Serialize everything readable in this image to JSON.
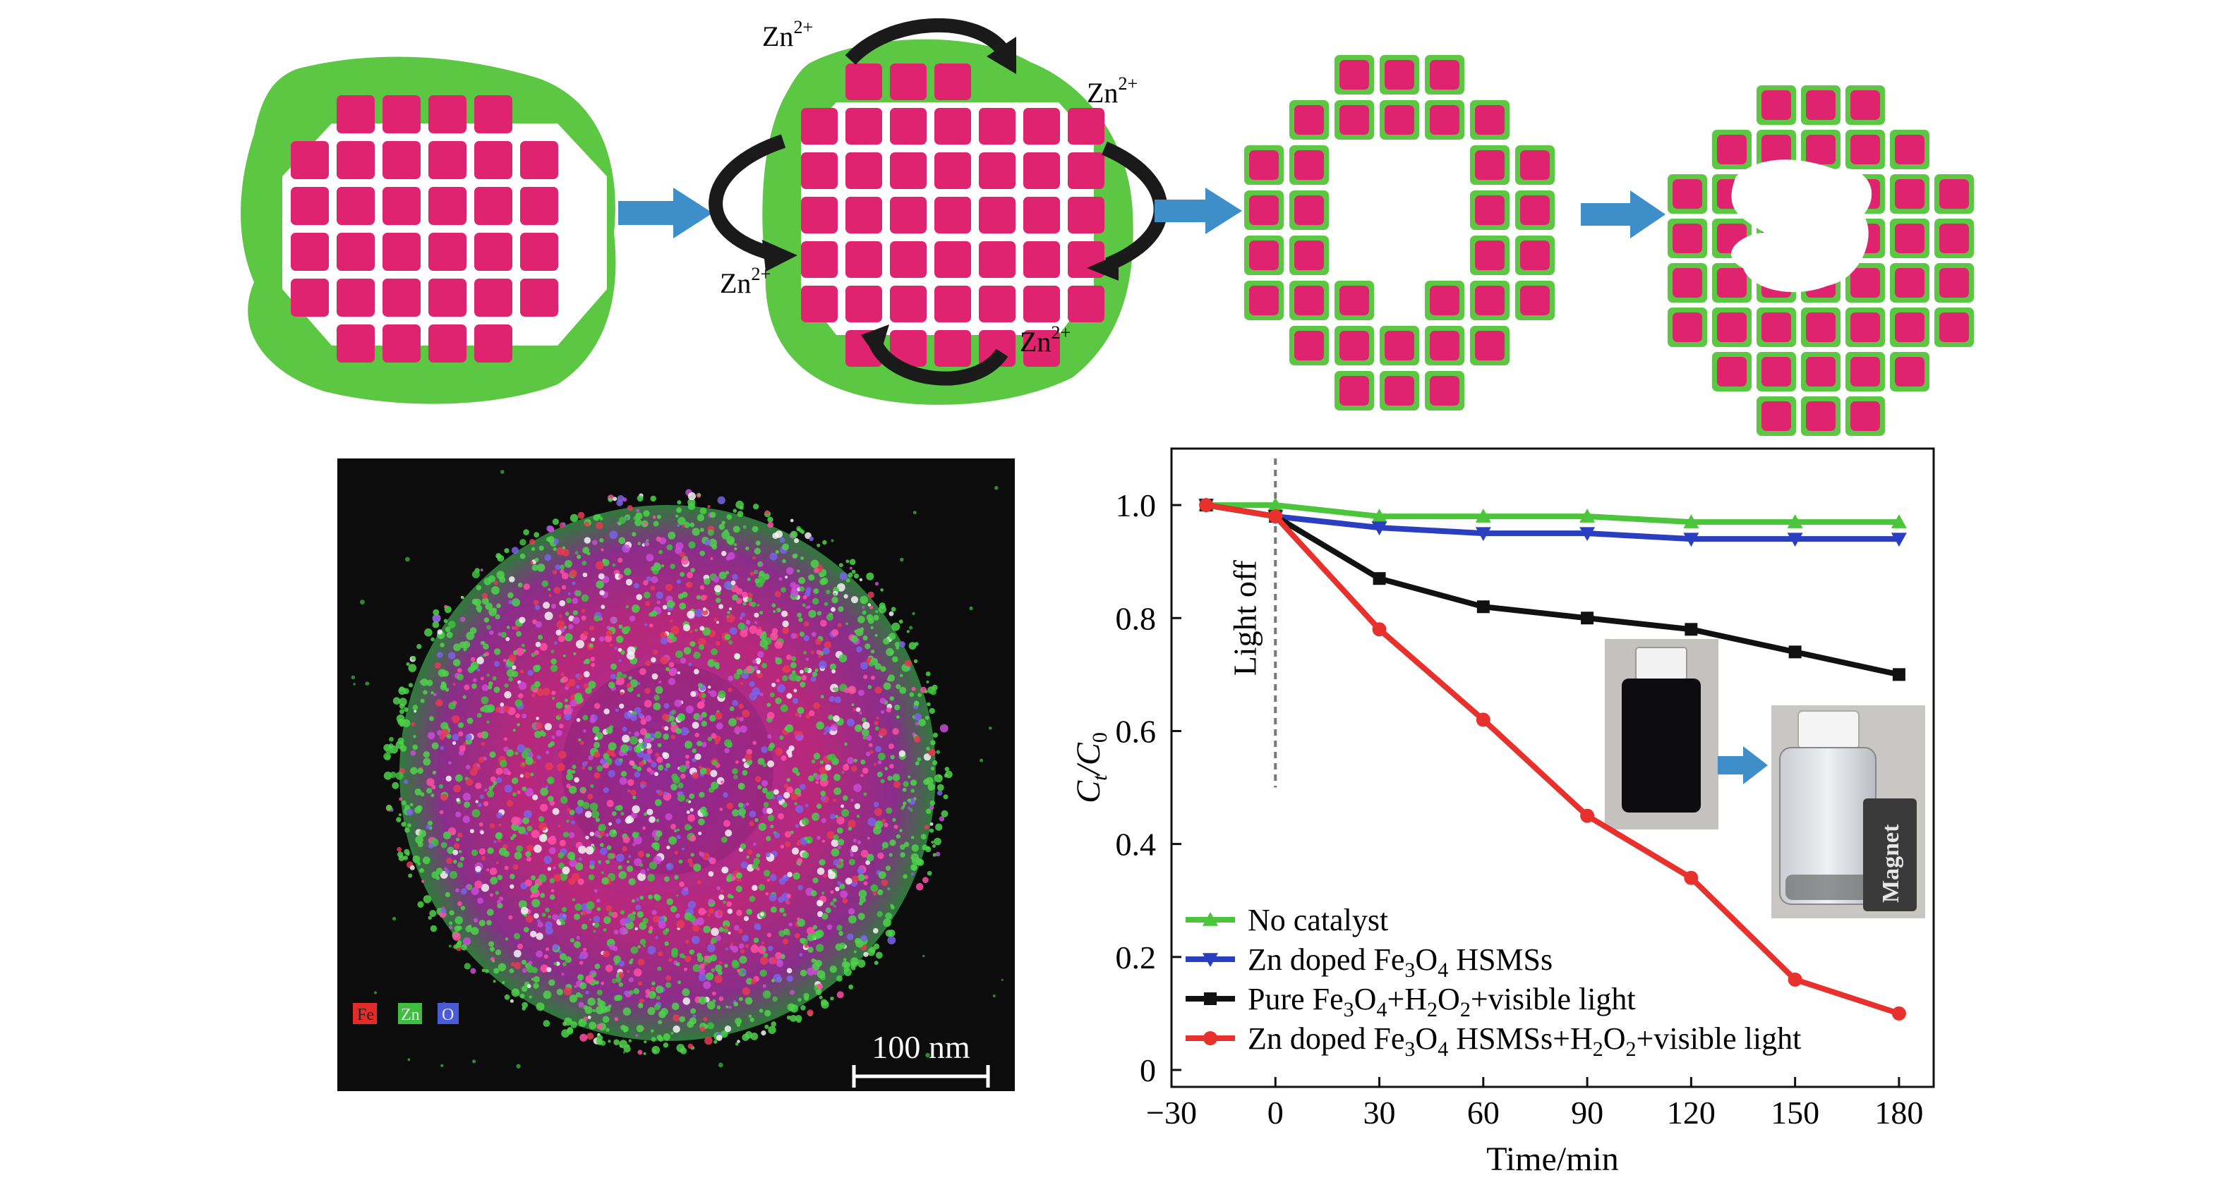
{
  "schematic": {
    "ion_label": "Zn",
    "ion_charge": "2+"
  },
  "map": {
    "legend": [
      {
        "label": "Fe",
        "color": "#e52a2a"
      },
      {
        "label": "Zn",
        "color": "#3fbf3f"
      },
      {
        "label": "O",
        "color": "#4a5bd8"
      }
    ],
    "scalebar": "100 nm"
  },
  "inset": {
    "magnet_label": "Magnet"
  },
  "colors": {
    "shell_green": "#5cc742",
    "core_pink": "#e0236e",
    "arrow_blue": "#3d8ec9",
    "curve_arrow": "#1a1a1a"
  },
  "chart_data": {
    "type": "line",
    "xlabel": "Time/min",
    "ylabel_main": "C",
    "ylabel_sub1": "t",
    "ylabel_mid": "/C",
    "ylabel_sub2": "0",
    "xlim": [
      -30,
      190
    ],
    "ylim": [
      -0.03,
      1.1
    ],
    "xticks": [
      -30,
      0,
      30,
      60,
      90,
      120,
      150,
      180
    ],
    "xtick_labels": [
      "−30",
      "0",
      "30",
      "60",
      "90",
      "120",
      "150",
      "180"
    ],
    "yticks": [
      0,
      0.2,
      0.4,
      0.6,
      0.8,
      1.0
    ],
    "ytick_labels": [
      "0",
      "0.2",
      "0.4",
      "0.6",
      "0.8",
      "1.0"
    ],
    "annotation": "Light off",
    "annotation_x": 0,
    "x": [
      -20,
      0,
      30,
      60,
      90,
      120,
      150,
      180
    ],
    "series": [
      {
        "name": "No catalyst",
        "color": "#4cc43c",
        "marker": "triangle-up",
        "values": [
          1.0,
          1.0,
          0.98,
          0.98,
          0.98,
          0.97,
          0.97,
          0.97
        ]
      },
      {
        "name": "Zn doped Fe3O4 HSMSs",
        "color": "#2a3fbf",
        "marker": "triangle-down",
        "values": [
          1.0,
          0.98,
          0.96,
          0.95,
          0.95,
          0.94,
          0.94,
          0.94
        ]
      },
      {
        "name": "Pure Fe3O4+H2O2+visible light",
        "color": "#111111",
        "marker": "square",
        "values": [
          1.0,
          0.98,
          0.87,
          0.82,
          0.8,
          0.78,
          0.74,
          0.7
        ]
      },
      {
        "name": "Zn doped Fe3O4 HSMSs+H2O2+visible light",
        "color": "#e8302c",
        "marker": "circle",
        "values": [
          1.0,
          0.98,
          0.78,
          0.62,
          0.45,
          0.34,
          0.16,
          0.1
        ]
      }
    ]
  }
}
